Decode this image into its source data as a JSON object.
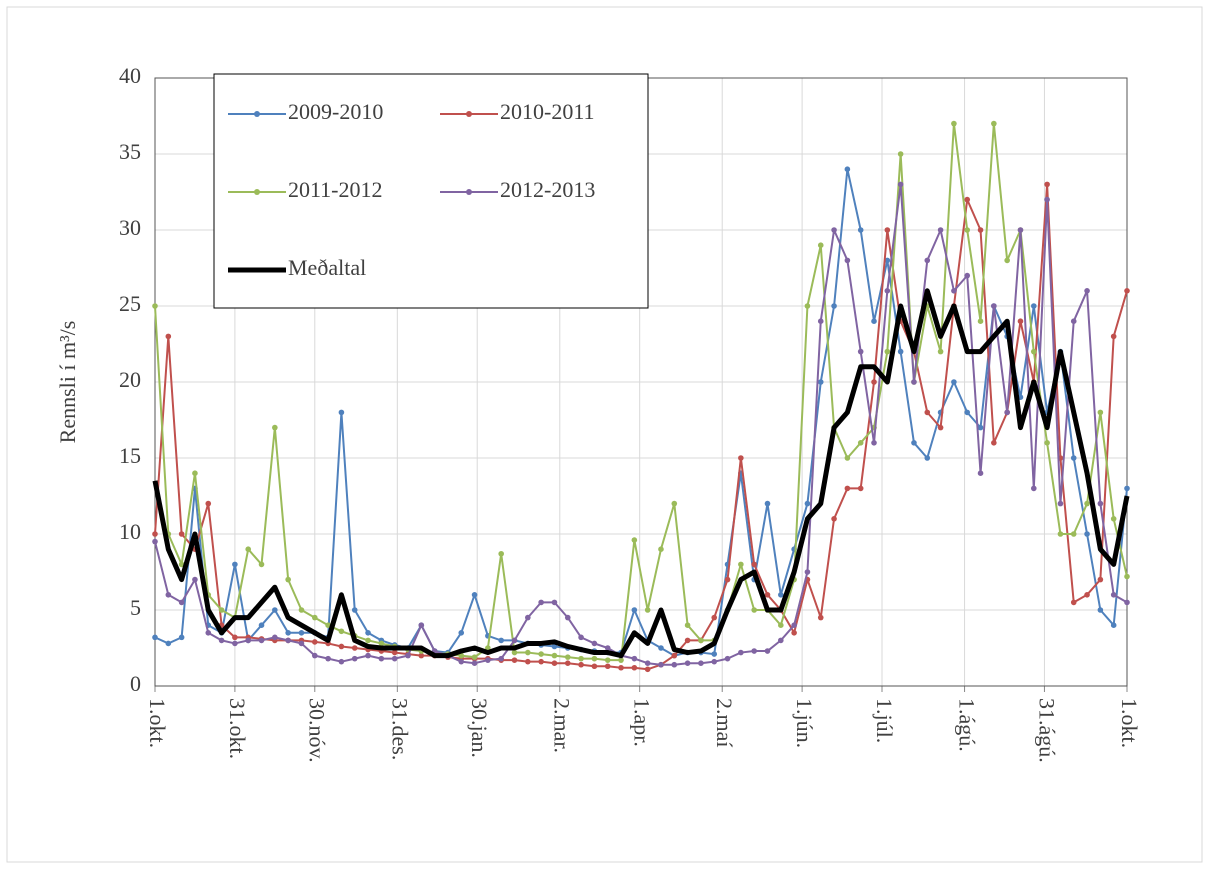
{
  "chart_data": {
    "type": "line",
    "ylabel": "Rennsli í m³/s",
    "x": [
      0,
      5,
      10,
      15,
      20,
      25,
      30,
      35,
      40,
      45,
      50,
      55,
      60,
      65,
      70,
      75,
      80,
      85,
      90,
      95,
      100,
      105,
      110,
      115,
      120,
      125,
      130,
      135,
      140,
      145,
      150,
      155,
      160,
      165,
      170,
      175,
      180,
      185,
      190,
      195,
      200,
      205,
      210,
      215,
      220,
      225,
      230,
      235,
      240,
      245,
      250,
      255,
      260,
      265,
      270,
      275,
      280,
      285,
      290,
      295,
      300,
      305,
      310,
      315,
      320,
      325,
      330,
      335,
      340,
      345,
      350,
      355,
      360,
      365
    ],
    "xlim": [
      0,
      365
    ],
    "xticks": [
      {
        "value": 0,
        "label": "1.okt."
      },
      {
        "value": 30,
        "label": "31.okt."
      },
      {
        "value": 60,
        "label": "30.nóv."
      },
      {
        "value": 91,
        "label": "31.des."
      },
      {
        "value": 121,
        "label": "30.jan."
      },
      {
        "value": 152,
        "label": "2.mar."
      },
      {
        "value": 182,
        "label": "1.apr."
      },
      {
        "value": 213,
        "label": "2.maí"
      },
      {
        "value": 243,
        "label": "1.jún."
      },
      {
        "value": 273,
        "label": "1.júl."
      },
      {
        "value": 304,
        "label": "1.ágú."
      },
      {
        "value": 334,
        "label": "31.ágú."
      },
      {
        "value": 365,
        "label": "1.okt."
      }
    ],
    "ylim": [
      0,
      40
    ],
    "yticks": [
      0,
      5,
      10,
      15,
      20,
      25,
      30,
      35,
      40
    ],
    "grid": true,
    "legend": "top-left",
    "series": [
      {
        "name": "2009-2010",
        "color": "#4f81bd",
        "markers": true,
        "values": [
          3.2,
          2.8,
          3.2,
          13,
          4,
          3.5,
          8,
          3,
          4,
          5,
          3.5,
          3.5,
          3.5,
          3.2,
          18,
          5,
          3.5,
          3,
          2.7,
          2.5,
          4,
          2.3,
          2.2,
          3.5,
          6,
          3.3,
          3,
          3,
          2.8,
          2.7,
          2.6,
          2.5,
          2.4,
          2.3,
          2.2,
          2.2,
          5,
          3,
          2.5,
          2,
          2.2,
          2.2,
          2.1,
          8,
          14,
          7,
          12,
          6,
          9,
          12,
          20,
          25,
          34,
          30,
          24,
          28,
          22,
          16,
          15,
          18,
          20,
          18,
          17,
          25,
          23,
          19,
          25,
          18,
          22,
          15,
          10,
          5,
          4,
          13
        ]
      },
      {
        "name": "2010-2011",
        "color": "#c0504d",
        "markers": true,
        "values": [
          10,
          23,
          10,
          9,
          12,
          4,
          3.2,
          3.2,
          3.1,
          3,
          3,
          3,
          2.9,
          2.8,
          2.6,
          2.5,
          2.4,
          2.3,
          2.2,
          2.1,
          2,
          2,
          1.9,
          1.8,
          1.8,
          1.8,
          1.7,
          1.7,
          1.6,
          1.6,
          1.5,
          1.5,
          1.4,
          1.3,
          1.3,
          1.2,
          1.2,
          1.1,
          1.4,
          2,
          3,
          3,
          4.5,
          7,
          15,
          8,
          6,
          5,
          3.5,
          7,
          4.5,
          11,
          13,
          13,
          20,
          30,
          24,
          22,
          18,
          17,
          25,
          32,
          30,
          16,
          18,
          24,
          20,
          33,
          15,
          5.5,
          6,
          7,
          23,
          26
        ]
      },
      {
        "name": "2011-2012",
        "color": "#9bbb59",
        "markers": true,
        "values": [
          25,
          10,
          8,
          14,
          6,
          5,
          4.5,
          9,
          8,
          17,
          7,
          5,
          4.5,
          4,
          3.6,
          3.3,
          3,
          2.8,
          2.6,
          2.4,
          2.3,
          2.2,
          2.1,
          2,
          1.9,
          2.5,
          8.7,
          2.2,
          2.2,
          2.1,
          2,
          1.9,
          1.8,
          1.8,
          1.7,
          1.7,
          9.6,
          5,
          9,
          12,
          4,
          3,
          3,
          5,
          8,
          5,
          5,
          4,
          7,
          25,
          29,
          17,
          15,
          16,
          17,
          22,
          35,
          20,
          25,
          22,
          37,
          30,
          24,
          37,
          28,
          30,
          22,
          16,
          10,
          10,
          12,
          18,
          11,
          7.2
        ]
      },
      {
        "name": "2012-2013",
        "color": "#8064a2",
        "markers": true,
        "values": [
          9.5,
          6,
          5.5,
          7,
          3.5,
          3,
          2.8,
          3,
          3,
          3.2,
          3,
          2.8,
          2,
          1.8,
          1.6,
          1.8,
          2,
          1.8,
          1.8,
          2,
          4,
          2.3,
          2,
          1.6,
          1.5,
          1.7,
          1.8,
          3,
          4.5,
          5.5,
          5.5,
          4.5,
          3.2,
          2.8,
          2.5,
          2,
          1.8,
          1.5,
          1.4,
          1.4,
          1.5,
          1.5,
          1.6,
          1.8,
          2.2,
          2.3,
          2.3,
          3,
          4,
          7.5,
          24,
          30,
          28,
          22,
          16,
          26,
          33,
          20,
          28,
          30,
          26,
          27,
          14,
          25,
          18,
          30,
          13,
          32,
          12,
          24,
          26,
          12,
          6,
          5.5
        ]
      },
      {
        "name": "Meðaltal",
        "color": "#000000",
        "markers": false,
        "values": [
          13.5,
          9,
          7,
          10,
          5,
          3.5,
          4.5,
          4.5,
          5.5,
          6.5,
          4.5,
          4,
          3.5,
          3,
          6,
          3,
          2.6,
          2.5,
          2.5,
          2.5,
          2.5,
          2,
          2,
          2.3,
          2.5,
          2.2,
          2.5,
          2.5,
          2.8,
          2.8,
          2.9,
          2.6,
          2.4,
          2.2,
          2.2,
          2,
          3.5,
          2.8,
          5,
          2.4,
          2.2,
          2.3,
          2.8,
          5,
          7,
          7.5,
          5,
          5,
          7.5,
          11,
          12,
          17,
          18,
          21,
          21,
          20,
          25,
          22,
          26,
          23,
          25,
          22,
          22,
          23,
          24,
          17,
          20,
          17,
          22,
          18,
          14,
          9,
          8,
          12.5
        ]
      }
    ]
  }
}
